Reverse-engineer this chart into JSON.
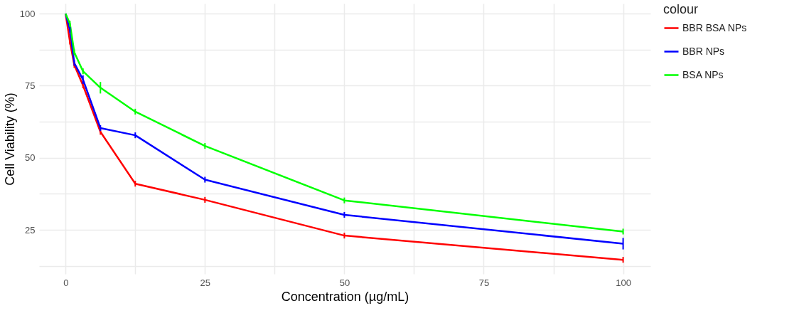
{
  "chart_data": {
    "type": "line",
    "xlabel": "Concentration (µg/mL)",
    "ylabel": "Cell Viability (%)",
    "legend_title": "colour",
    "x": [
      0,
      0.78,
      1.56,
      3.125,
      6.25,
      12.5,
      25,
      50,
      100
    ],
    "series": [
      {
        "name": "BBR BSA NPs",
        "color": "#ff0000",
        "values": [
          100,
          90.3,
          82.2,
          75.1,
          59,
          41,
          35.4,
          23,
          14.6
        ],
        "errors": [
          null,
          1,
          1,
          1,
          1,
          1,
          1,
          1,
          1
        ]
      },
      {
        "name": "BBR NPs",
        "color": "#0000ff",
        "values": [
          100,
          94.4,
          82.9,
          77.1,
          60.3,
          57.8,
          42.4,
          30.2,
          20.2
        ],
        "errors": [
          null,
          1,
          1,
          1.5,
          1,
          1,
          1,
          1,
          2
        ]
      },
      {
        "name": "BSA NPs",
        "color": "#00ff00",
        "values": [
          100,
          96.5,
          86.6,
          80,
          74.3,
          66,
          54.1,
          35.2,
          24.4
        ],
        "errors": [
          null,
          1,
          1,
          1,
          2,
          1,
          1,
          1,
          1
        ]
      }
    ],
    "xlim": [
      -4.75,
      104.9
    ],
    "ylim": [
      9.7,
      103.5
    ],
    "xticks": [
      0,
      {
        "value": 12.5,
        "label": null
      },
      25,
      {
        "value": 37.5,
        "label": null
      },
      50,
      {
        "value": 62.5,
        "label": null
      },
      75,
      {
        "value": 87.5,
        "label": null
      },
      100
    ],
    "yticks": [
      {
        "value": 12.5,
        "label": null
      },
      25,
      {
        "value": 37.5,
        "label": null
      },
      50,
      {
        "value": 62.5,
        "label": null
      },
      75,
      {
        "value": 87.5,
        "label": null
      },
      100
    ],
    "grid": true,
    "legend": "right",
    "marker": "none",
    "line_style": "solid"
  }
}
